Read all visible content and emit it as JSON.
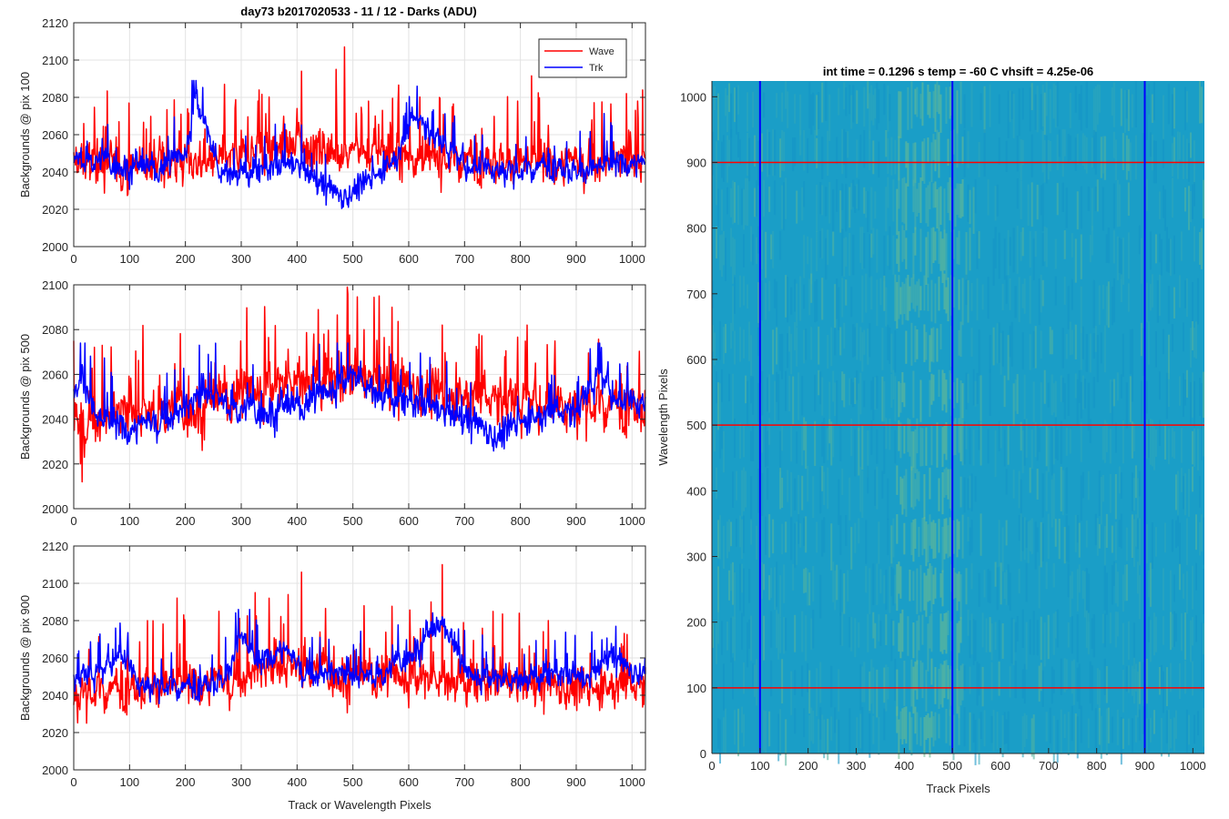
{
  "figure": {
    "suptitle": "day73 b2017020533 - 11 / 12 - Darks (ADU)"
  },
  "chart_data": [
    {
      "type": "line",
      "title": "day73 b2017020533 - 11 / 12 - Darks (ADU)",
      "xlabel": "",
      "ylabel": "Backgrounds @ pix 100",
      "xlim": [
        0,
        1024
      ],
      "ylim": [
        2000,
        2120
      ],
      "xticks": [
        0,
        100,
        200,
        300,
        400,
        500,
        600,
        700,
        800,
        900,
        1000
      ],
      "yticks": [
        2000,
        2020,
        2040,
        2060,
        2080,
        2100,
        2120
      ],
      "grid": true,
      "legend": {
        "placement": "top-right",
        "entries": [
          "Wave",
          "Trk"
        ]
      },
      "series": [
        {
          "name": "Wave",
          "color": "#ff0000",
          "min": 2021,
          "max": 2107,
          "profile": [
            [
              0,
              2044
            ],
            [
              100,
              2044
            ],
            [
              200,
              2046
            ],
            [
              280,
              2046
            ],
            [
              320,
              2050
            ],
            [
              400,
              2055
            ],
            [
              500,
              2052
            ],
            [
              600,
              2050
            ],
            [
              700,
              2046
            ],
            [
              800,
              2045
            ],
            [
              900,
              2046
            ],
            [
              1024,
              2045
            ]
          ],
          "spikes": [
            [
              18,
              2066
            ],
            [
              130,
              2063
            ],
            [
              235,
              2063
            ],
            [
              330,
              2078
            ],
            [
              408,
              2094
            ],
            [
              470,
              2095
            ],
            [
              485,
              2107
            ],
            [
              540,
              2070
            ],
            [
              678,
              2075
            ],
            [
              850,
              2065
            ],
            [
              990,
              2082
            ],
            [
              1010,
              2078
            ]
          ]
        },
        {
          "name": "Trk",
          "color": "#0000ff",
          "min": 2017,
          "max": 2089,
          "profile": [
            [
              0,
              2048
            ],
            [
              50,
              2046
            ],
            [
              150,
              2042
            ],
            [
              200,
              2050
            ],
            [
              218,
              2080
            ],
            [
              240,
              2062
            ],
            [
              260,
              2040
            ],
            [
              300,
              2040
            ],
            [
              400,
              2044
            ],
            [
              440,
              2034
            ],
            [
              480,
              2026
            ],
            [
              520,
              2034
            ],
            [
              580,
              2048
            ],
            [
              610,
              2070
            ],
            [
              650,
              2058
            ],
            [
              700,
              2044
            ],
            [
              800,
              2040
            ],
            [
              850,
              2044
            ],
            [
              900,
              2040
            ],
            [
              1000,
              2046
            ],
            [
              1024,
              2044
            ]
          ],
          "spikes": [
            [
              215,
              2089
            ],
            [
              615,
              2086
            ]
          ]
        }
      ]
    },
    {
      "type": "line",
      "title": "",
      "xlabel": "",
      "ylabel": "Backgrounds @ pix 500",
      "xlim": [
        0,
        1024
      ],
      "ylim": [
        2000,
        2100
      ],
      "xticks": [
        0,
        100,
        200,
        300,
        400,
        500,
        600,
        700,
        800,
        900,
        1000
      ],
      "yticks": [
        2000,
        2020,
        2040,
        2060,
        2080,
        2100
      ],
      "grid": true,
      "series": [
        {
          "name": "Wave",
          "color": "#ff0000",
          "min": 2012,
          "max": 2099,
          "profile": [
            [
              0,
              2040
            ],
            [
              100,
              2042
            ],
            [
              200,
              2046
            ],
            [
              300,
              2052
            ],
            [
              400,
              2058
            ],
            [
              500,
              2058
            ],
            [
              600,
              2054
            ],
            [
              700,
              2050
            ],
            [
              800,
              2048
            ],
            [
              900,
              2046
            ],
            [
              1024,
              2046
            ]
          ],
          "spikes": [
            [
              0,
              2075
            ],
            [
              12,
              2020
            ],
            [
              15,
              2012
            ],
            [
              430,
              2078
            ],
            [
              448,
              2078
            ],
            [
              490,
              2099
            ],
            [
              520,
              2080
            ],
            [
              547,
              2095
            ],
            [
              570,
              2090
            ],
            [
              660,
              2082
            ]
          ]
        },
        {
          "name": "Trk",
          "color": "#0000ff",
          "min": 2017,
          "max": 2074,
          "profile": [
            [
              0,
              2050
            ],
            [
              15,
              2060
            ],
            [
              40,
              2040
            ],
            [
              100,
              2036
            ],
            [
              200,
              2044
            ],
            [
              240,
              2052
            ],
            [
              300,
              2044
            ],
            [
              400,
              2046
            ],
            [
              450,
              2052
            ],
            [
              500,
              2060
            ],
            [
              540,
              2052
            ],
            [
              600,
              2048
            ],
            [
              700,
              2040
            ],
            [
              760,
              2032
            ],
            [
              800,
              2040
            ],
            [
              900,
              2044
            ],
            [
              940,
              2060
            ],
            [
              980,
              2048
            ],
            [
              1024,
              2048
            ]
          ],
          "spikes": [
            [
              20,
              2074
            ],
            [
              225,
              2073
            ],
            [
              945,
              2072
            ]
          ]
        }
      ]
    },
    {
      "type": "line",
      "title": "",
      "xlabel": "Track or Wavelength Pixels",
      "ylabel": "Backgrounds @ pix 900",
      "xlim": [
        0,
        1024
      ],
      "ylim": [
        2000,
        2120
      ],
      "xticks": [
        0,
        100,
        200,
        300,
        400,
        500,
        600,
        700,
        800,
        900,
        1000
      ],
      "yticks": [
        2000,
        2020,
        2040,
        2060,
        2080,
        2100,
        2120
      ],
      "grid": true,
      "series": [
        {
          "name": "Wave",
          "color": "#ff0000",
          "min": 2017,
          "max": 2110,
          "profile": [
            [
              0,
              2040
            ],
            [
              100,
              2044
            ],
            [
              200,
              2046
            ],
            [
              300,
              2050
            ],
            [
              400,
              2056
            ],
            [
              500,
              2052
            ],
            [
              600,
              2050
            ],
            [
              700,
              2048
            ],
            [
              800,
              2046
            ],
            [
              900,
              2044
            ],
            [
              1024,
              2045
            ]
          ],
          "spikes": [
            [
              132,
              2080
            ],
            [
              260,
              2085
            ],
            [
              325,
              2095
            ],
            [
              350,
              2092
            ],
            [
              408,
              2106
            ],
            [
              520,
              2088
            ],
            [
              640,
              2090
            ],
            [
              660,
              2110
            ],
            [
              850,
              2080
            ]
          ]
        },
        {
          "name": "Trk",
          "color": "#0000ff",
          "min": 2018,
          "max": 2086,
          "profile": [
            [
              0,
              2050
            ],
            [
              50,
              2052
            ],
            [
              80,
              2064
            ],
            [
              120,
              2046
            ],
            [
              200,
              2044
            ],
            [
              270,
              2048
            ],
            [
              300,
              2072
            ],
            [
              330,
              2056
            ],
            [
              370,
              2066
            ],
            [
              420,
              2052
            ],
            [
              500,
              2050
            ],
            [
              560,
              2052
            ],
            [
              640,
              2074
            ],
            [
              670,
              2078
            ],
            [
              700,
              2052
            ],
            [
              780,
              2048
            ],
            [
              860,
              2052
            ],
            [
              920,
              2048
            ],
            [
              960,
              2062
            ],
            [
              1000,
              2052
            ],
            [
              1024,
              2054
            ]
          ],
          "spikes": [
            [
              75,
              2076
            ],
            [
              295,
              2086
            ],
            [
              660,
              2082
            ]
          ]
        }
      ]
    },
    {
      "type": "heatmap",
      "title": "int time = 0.1296 s    temp = -60 C    vhsift = 4.25e-06",
      "xlabel": "Track Pixels",
      "ylabel": "Wavelength Pixels",
      "xlim": [
        0,
        1024
      ],
      "ylim": [
        0,
        1024
      ],
      "xticks": [
        0,
        100,
        200,
        300,
        400,
        500,
        600,
        700,
        800,
        900,
        1000
      ],
      "yticks": [
        0,
        100,
        200,
        300,
        400,
        500,
        600,
        700,
        800,
        900,
        1000
      ],
      "colormap": "parula",
      "base_color": "#1a9ec7",
      "bright_band_x": [
        380,
        520
      ],
      "vertical_lines": {
        "color": "#0000ff",
        "x": [
          100,
          500,
          900
        ]
      },
      "horizontal_lines": {
        "color": "#ff0000",
        "y": [
          100,
          500,
          900
        ]
      }
    }
  ]
}
